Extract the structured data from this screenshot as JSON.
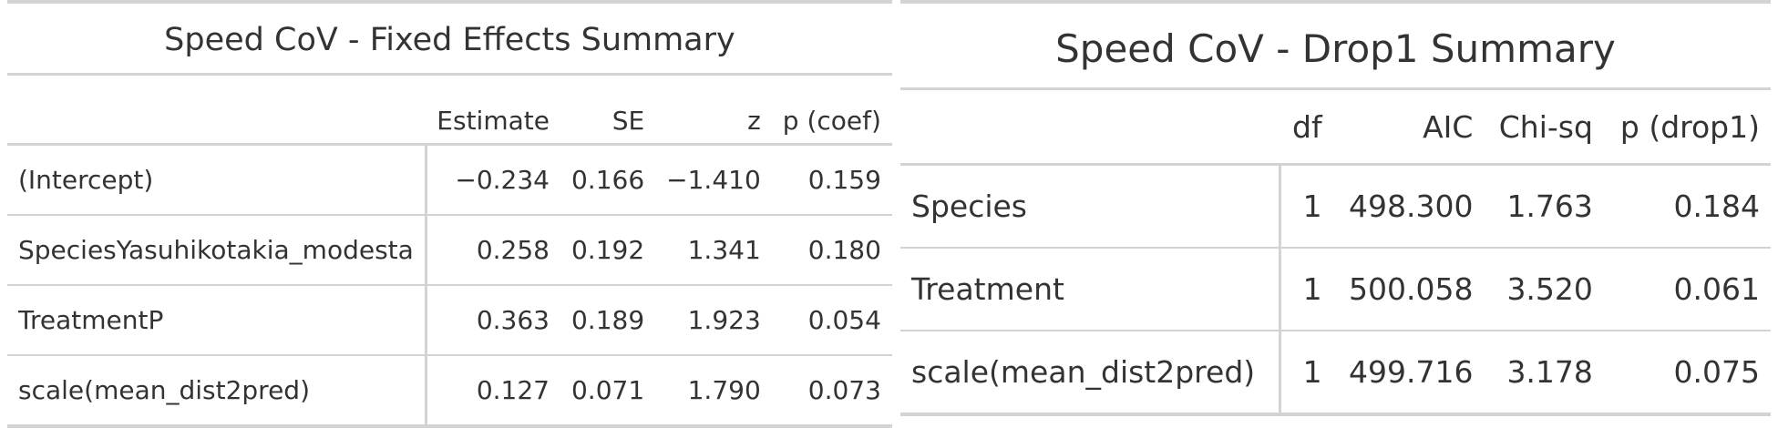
{
  "fixed_effects": {
    "title": "Speed CoV - Fixed Effects Summary",
    "columns": [
      "",
      "Estimate",
      "SE",
      "z",
      "p (coef)"
    ],
    "rows": [
      [
        "(Intercept)",
        "−0.234",
        "0.166",
        "−1.410",
        "0.159"
      ],
      [
        "SpeciesYasuhikotakia_modesta",
        "0.258",
        "0.192",
        "1.341",
        "0.180"
      ],
      [
        "TreatmentP",
        "0.363",
        "0.189",
        "1.923",
        "0.054"
      ],
      [
        "scale(mean_dist2pred)",
        "0.127",
        "0.071",
        "1.790",
        "0.073"
      ]
    ]
  },
  "drop1": {
    "title": "Speed CoV - Drop1 Summary",
    "columns": [
      "",
      "df",
      "AIC",
      "Chi-sq",
      "p (drop1)"
    ],
    "rows": [
      [
        "Species",
        "1",
        "498.300",
        "1.763",
        "0.184"
      ],
      [
        "Treatment",
        "1",
        "500.058",
        "3.520",
        "0.061"
      ],
      [
        "scale(mean_dist2pred)",
        "1",
        "499.716",
        "3.178",
        "0.075"
      ]
    ]
  }
}
